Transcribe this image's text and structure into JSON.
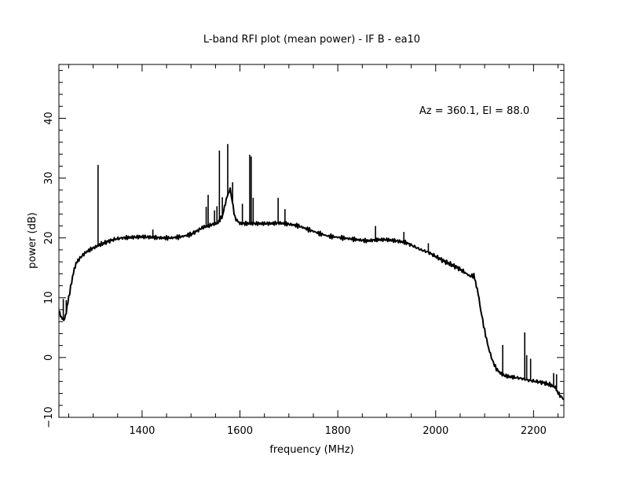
{
  "chart_data": {
    "type": "line",
    "title": "L-band RFI plot (mean power) - IF B - ea10",
    "xlabel": "frequency (MHz)",
    "ylabel": "power (dB)",
    "annotation": "Az = 360.1, El = 88.0",
    "xlim": [
      1230,
      2262
    ],
    "ylim": [
      -10,
      49
    ],
    "xticks": [
      1400,
      1600,
      1800,
      2000,
      2200
    ],
    "yticks": [
      -10,
      0,
      10,
      20,
      30,
      40
    ],
    "grid": false,
    "line_color": "#000000",
    "series": [
      {
        "name": "",
        "x": [
          1230,
          1235,
          1240,
          1245,
          1250,
          1258,
          1265,
          1275,
          1285,
          1295,
          1305,
          1315,
          1330,
          1345,
          1360,
          1380,
          1400,
          1420,
          1440,
          1460,
          1480,
          1500,
          1515,
          1525,
          1535,
          1545,
          1555,
          1565,
          1572,
          1580,
          1590,
          1600,
          1620,
          1640,
          1660,
          1680,
          1700,
          1720,
          1740,
          1760,
          1780,
          1800,
          1820,
          1840,
          1860,
          1880,
          1900,
          1920,
          1940,
          1955,
          1970,
          1985,
          2000,
          2015,
          2030,
          2045,
          2060,
          2070,
          2078,
          2085,
          2092,
          2100,
          2108,
          2116,
          2124,
          2132,
          2140,
          2150,
          2160,
          2175,
          2190,
          2205,
          2220,
          2235,
          2245,
          2252,
          2262
        ],
        "y": [
          8,
          6.5,
          6.3,
          7.5,
          10,
          13.5,
          15.8,
          16.8,
          17.6,
          18.1,
          18.5,
          18.9,
          19.4,
          19.8,
          20.0,
          20.1,
          20.2,
          20.1,
          20.0,
          20.0,
          20.2,
          20.6,
          21.3,
          21.8,
          22.0,
          22.3,
          22.5,
          23.8,
          26.5,
          28.2,
          23.3,
          22.4,
          22.4,
          22.4,
          22.4,
          22.5,
          22.3,
          22.0,
          21.4,
          20.8,
          20.3,
          20.1,
          19.9,
          19.7,
          19.5,
          19.7,
          19.7,
          19.5,
          19.2,
          18.6,
          18.0,
          17.6,
          16.9,
          16.2,
          15.6,
          15.0,
          14.2,
          13.6,
          13.7,
          11.5,
          8.0,
          4.5,
          1.6,
          -0.5,
          -1.9,
          -2.6,
          -3.0,
          -3.2,
          -3.3,
          -3.5,
          -3.8,
          -4.0,
          -4.2,
          -4.6,
          -5.0,
          -6.2,
          -7.0
        ]
      }
    ],
    "spikes": [
      {
        "x": 1239,
        "y": 9.8
      },
      {
        "x": 1245,
        "y": 9.6
      },
      {
        "x": 1310,
        "y": 32.2
      },
      {
        "x": 1422,
        "y": 21.4
      },
      {
        "x": 1531,
        "y": 25.2
      },
      {
        "x": 1535,
        "y": 27.2
      },
      {
        "x": 1548,
        "y": 24.6
      },
      {
        "x": 1553,
        "y": 25.3
      },
      {
        "x": 1558,
        "y": 34.6
      },
      {
        "x": 1564,
        "y": 26.8
      },
      {
        "x": 1575,
        "y": 35.7
      },
      {
        "x": 1585,
        "y": 29.3
      },
      {
        "x": 1605,
        "y": 25.7
      },
      {
        "x": 1620,
        "y": 33.9
      },
      {
        "x": 1623,
        "y": 33.6
      },
      {
        "x": 1627,
        "y": 26.7
      },
      {
        "x": 1678,
        "y": 26.7
      },
      {
        "x": 1692,
        "y": 24.8
      },
      {
        "x": 1877,
        "y": 22.0
      },
      {
        "x": 1935,
        "y": 21.0
      },
      {
        "x": 1985,
        "y": 19.1
      },
      {
        "x": 2137,
        "y": 2.1
      },
      {
        "x": 2182,
        "y": 4.2
      },
      {
        "x": 2186,
        "y": 0.4
      },
      {
        "x": 2194,
        "y": -0.2
      },
      {
        "x": 2241,
        "y": -2.6
      },
      {
        "x": 2247,
        "y": -2.8
      }
    ]
  }
}
